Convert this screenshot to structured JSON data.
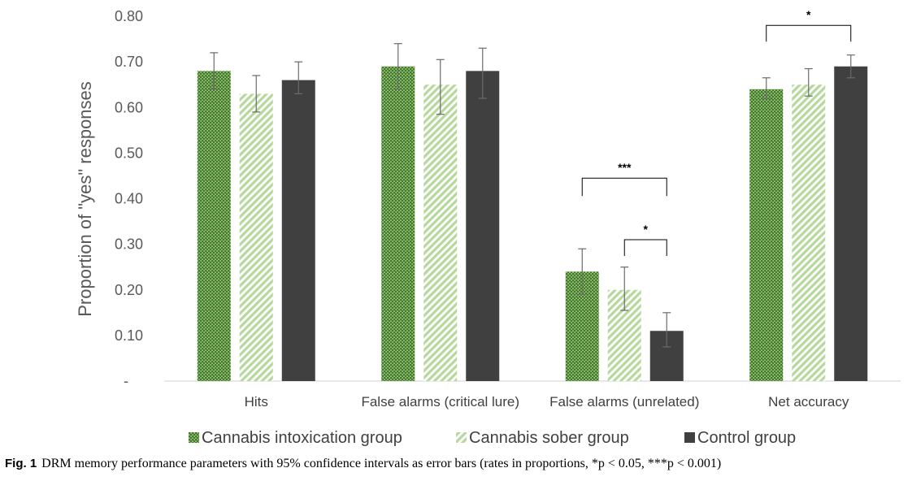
{
  "chart_data": {
    "type": "bar",
    "categories": [
      "Hits",
      "False alarms (critical lure)",
      "False alarms (unrelated)",
      "Net accuracy"
    ],
    "series": [
      {
        "name": "Cannabis intoxication group",
        "values": [
          0.68,
          0.69,
          0.24,
          0.64
        ],
        "ci_lower": [
          0.64,
          0.64,
          0.19,
          0.62
        ],
        "ci_upper": [
          0.72,
          0.74,
          0.29,
          0.665
        ],
        "color": "#548235",
        "pattern": "dotted"
      },
      {
        "name": "Cannabis sober group",
        "values": [
          0.63,
          0.65,
          0.2,
          0.65
        ],
        "ci_lower": [
          0.59,
          0.585,
          0.155,
          0.625
        ],
        "ci_upper": [
          0.67,
          0.705,
          0.25,
          0.685
        ],
        "color": "#A9D18E",
        "pattern": "diagonal-stripes"
      },
      {
        "name": "Control group",
        "values": [
          0.66,
          0.68,
          0.11,
          0.69
        ],
        "ci_lower": [
          0.63,
          0.62,
          0.075,
          0.665
        ],
        "ci_upper": [
          0.7,
          0.73,
          0.15,
          0.715
        ],
        "color": "#404040",
        "pattern": "solid"
      }
    ],
    "ylabel": "Proportion of \"yes\" responses",
    "xlabel": "",
    "ylim": [
      0,
      0.8
    ],
    "yticks": [
      0,
      0.1,
      0.2,
      0.3,
      0.4,
      0.5,
      0.6,
      0.7,
      0.8
    ],
    "ytick_labels": [
      "-",
      "0.10",
      "0.20",
      "0.30",
      "0.40",
      "0.50",
      "0.60",
      "0.70",
      "0.80"
    ],
    "grid": false,
    "legend_position": "bottom",
    "significance": [
      {
        "category_index": 2,
        "from_series": 0,
        "to_series": 2,
        "label": "***"
      },
      {
        "category_index": 2,
        "from_series": 1,
        "to_series": 2,
        "label": "*"
      },
      {
        "category_index": 3,
        "from_series": 0,
        "to_series": 2,
        "label": "*"
      }
    ]
  },
  "caption": {
    "label": "Fig. 1",
    "text": "DRM memory performance parameters with 95% confidence intervals as error bars (rates in proportions, *p < 0.05, ***p < 0.001)"
  }
}
